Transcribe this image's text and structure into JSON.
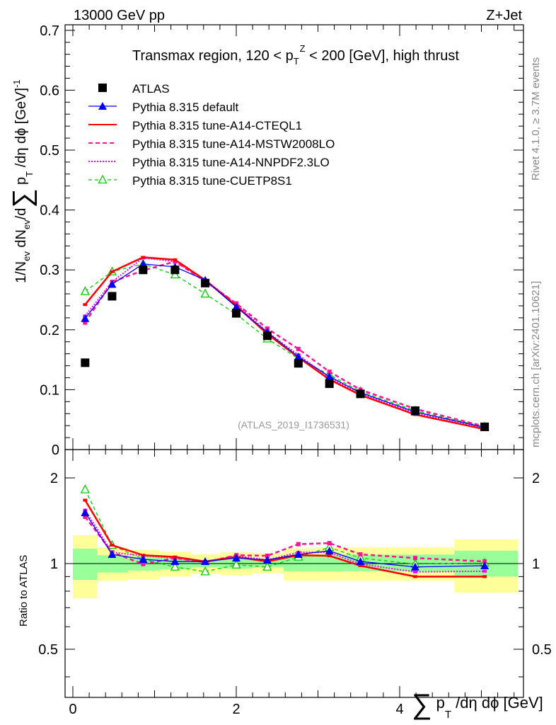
{
  "header": {
    "left": "13000 GeV pp",
    "right": "Z+Jet"
  },
  "side_labels": {
    "rivet": "Rivet 4.1.0, ≥ 3.7M events",
    "mcplots": "mcplots.cern.ch [arXiv:2401.10621]"
  },
  "chart_data": [
    {
      "type": "line",
      "panel": "main",
      "title": "Transmax region, 120 < p_T^Z < 200 [GeV], high thrust",
      "title_parts": {
        "pre": "Transmax region, 120 < p",
        "sup": "Z",
        "sub": "T",
        "post": " < 200 [GeV], high thrust"
      },
      "ylabel": "1/N_ev dN_ev/d∑ p_T /dη dϕ [GeV]^-1",
      "ylabel_parts": {
        "a": "1/N",
        "a_sub": "ev",
        "b": " dN",
        "b_sub": "ev",
        "c": "/d",
        "sigma": "∑",
        "d": " p",
        "d_sub": "T",
        "e": " /dη dϕ  [GeV]",
        "e_sup": "-1"
      },
      "xlim": [
        -0.1,
        5.5
      ],
      "ylim": [
        0,
        0.71
      ],
      "yticks": [
        "0",
        "0.1",
        "0.2",
        "0.3",
        "0.4",
        "0.5",
        "0.6",
        "0.7"
      ],
      "watermark": "(ATLAS_2019_I1736531)",
      "legend_position": "top-left",
      "x": [
        0.15,
        0.48,
        0.86,
        1.25,
        1.62,
        2.0,
        2.38,
        2.76,
        3.14,
        3.52,
        4.19,
        5.04
      ],
      "series": [
        {
          "name": "ATLAS",
          "color": "#000000",
          "values": [
            0.145,
            0.256,
            0.3,
            0.3,
            0.278,
            0.228,
            0.19,
            0.144,
            0.11,
            0.093,
            0.065,
            0.038
          ]
        },
        {
          "name": "Pythia 8.315 default",
          "color": "#0000ff",
          "values": [
            0.219,
            0.276,
            0.31,
            0.305,
            0.283,
            0.238,
            0.196,
            0.155,
            0.122,
            0.095,
            0.063,
            0.037
          ]
        },
        {
          "name": "Pythia 8.315 tune-A14-CTEQL1",
          "color": "#ff0000",
          "values": [
            0.242,
            0.297,
            0.321,
            0.317,
            0.283,
            0.24,
            0.193,
            0.154,
            0.117,
            0.091,
            0.0585,
            0.034
          ]
        },
        {
          "name": "Pythia 8.315 tune-A14-MSTW2008LO",
          "color": "#ff1493",
          "values": [
            0.212,
            0.28,
            0.299,
            0.314,
            0.281,
            0.244,
            0.202,
            0.168,
            0.13,
            0.1,
            0.068,
            0.0387
          ]
        },
        {
          "name": "Pythia 8.315 tune-A14-NNPDF2.3LO",
          "color": "#ff00ff",
          "values": [
            0.223,
            0.28,
            0.32,
            0.314,
            0.283,
            0.243,
            0.196,
            0.158,
            0.12,
            0.093,
            0.061,
            0.036
          ]
        },
        {
          "name": "Pythia 8.315 tune-CUETP8S1",
          "color": "#00cc00",
          "values": [
            0.264,
            0.297,
            0.31,
            0.292,
            0.26,
            0.226,
            0.185,
            0.152,
            0.125,
            0.097,
            0.065,
            0.038
          ]
        }
      ]
    },
    {
      "type": "line",
      "panel": "ratio",
      "ylabel": "Ratio to ATLAS",
      "yscale": "log",
      "ylim": [
        0.34,
        2.5
      ],
      "yticks": [
        "0.5",
        "1",
        "2"
      ],
      "xlabel": "∑ p_T /dη dϕ [GeV]",
      "xlabel_parts": {
        "sigma": "∑",
        "a": " p",
        "a_sub": "T",
        "b": " /dη dϕ [GeV]"
      },
      "xticks": [
        "0",
        "2",
        "4"
      ],
      "bin_edges": [
        0,
        0.3,
        0.68,
        1.06,
        1.45,
        1.81,
        2.2,
        2.58,
        2.96,
        3.34,
        3.72,
        4.67,
        5.45
      ],
      "band_total": {
        "color": "#ffff99",
        "low": [
          0.755,
          0.87,
          0.88,
          0.9,
          0.92,
          0.91,
          0.925,
          0.87,
          0.87,
          0.87,
          0.87,
          0.79
        ],
        "high": [
          1.257,
          1.14,
          1.115,
          1.1,
          1.077,
          1.095,
          1.09,
          1.13,
          1.14,
          1.14,
          1.14,
          1.215
        ]
      },
      "band_stat": {
        "color": "#99ff99",
        "low": [
          0.877,
          0.93,
          0.945,
          0.955,
          0.97,
          0.96,
          0.97,
          0.94,
          0.94,
          0.94,
          0.94,
          0.9
        ],
        "high": [
          1.128,
          1.07,
          1.06,
          1.05,
          1.03,
          1.05,
          1.04,
          1.065,
          1.075,
          1.075,
          1.075,
          1.11
        ]
      },
      "x": [
        0.15,
        0.48,
        0.86,
        1.25,
        1.62,
        2.0,
        2.38,
        2.76,
        3.14,
        3.52,
        4.19,
        5.04
      ],
      "series": [
        {
          "name": "Pythia 8.315 default",
          "values": [
            1.51,
            1.077,
            1.035,
            1.017,
            1.017,
            1.046,
            1.03,
            1.077,
            1.108,
            1.017,
            0.973,
            0.983
          ]
        },
        {
          "name": "Pythia 8.315 tune-A14-CTEQL1",
          "values": [
            1.67,
            1.16,
            1.07,
            1.055,
            1.017,
            1.055,
            1.017,
            1.07,
            1.065,
            0.983,
            0.9,
            0.9
          ]
        },
        {
          "name": "Pythia 8.315 tune-A14-MSTW2008LO",
          "values": [
            1.46,
            1.095,
            0.996,
            1.046,
            1.01,
            1.07,
            1.065,
            1.17,
            1.18,
            1.077,
            1.046,
            1.017
          ]
        },
        {
          "name": "Pythia 8.315 tune-A14-NNPDF2.3LO",
          "values": [
            1.54,
            1.095,
            1.065,
            1.046,
            1.017,
            1.065,
            1.03,
            1.095,
            1.095,
            0.996,
            0.935,
            0.94
          ]
        },
        {
          "name": "Pythia 8.315 tune-CUETP8S1",
          "values": [
            1.82,
            1.16,
            1.035,
            0.973,
            0.937,
            0.99,
            0.973,
            1.055,
            1.14,
            1.046,
            0.996,
            1.005
          ]
        }
      ]
    }
  ]
}
